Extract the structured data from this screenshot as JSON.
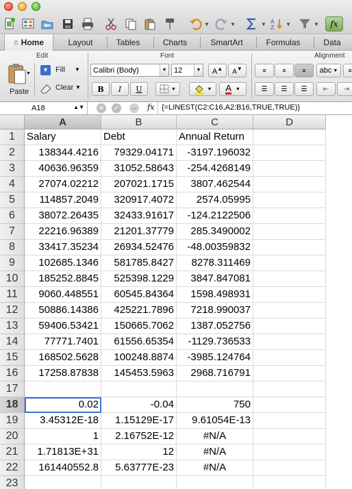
{
  "toolbar": {
    "icons": [
      "new-icon",
      "templates-icon",
      "open-icon",
      "save-icon",
      "print-icon",
      "cut-icon",
      "copy-icon",
      "paste-icon",
      "format-painter-icon",
      "undo-icon",
      "redo-icon",
      "autosum-icon",
      "sort-icon",
      "filter-icon",
      "formula-builder-icon"
    ],
    "fx": "fx"
  },
  "ribbon_tabs": [
    {
      "label": "Home",
      "active": true
    },
    {
      "label": "Layout"
    },
    {
      "label": "Tables"
    },
    {
      "label": "Charts"
    },
    {
      "label": "SmartArt"
    },
    {
      "label": "Formulas"
    },
    {
      "label": "Data"
    }
  ],
  "ribbon": {
    "edit_group": "Edit",
    "font_group": "Font",
    "alignment_group": "Alignment",
    "paste_label": "Paste",
    "fill_label": "Fill",
    "clear_label": "Clear",
    "font_name": "Calibri (Body)",
    "font_size": "12",
    "bold": "B",
    "italic": "I",
    "underline": "U",
    "wrap_label": "abc"
  },
  "formula_bar": {
    "name_box": "A18",
    "fx": "fx",
    "formula": "{=LINEST(C2:C16,A2:B16,TRUE,TRUE)}"
  },
  "columns": [
    "A",
    "B",
    "C",
    "D"
  ],
  "selected_column": "A",
  "selected_row": "18",
  "rows": [
    {
      "num": "1",
      "cells": [
        "Salary",
        "Debt",
        "Annual Return",
        ""
      ]
    },
    {
      "num": "2",
      "cells": [
        "138344.4216",
        "79329.04171",
        "-3197.196032",
        ""
      ]
    },
    {
      "num": "3",
      "cells": [
        "40636.96359",
        "31052.58643",
        "-254.4268149",
        ""
      ]
    },
    {
      "num": "4",
      "cells": [
        "27074.02212",
        "207021.1715",
        "3807.462544",
        ""
      ]
    },
    {
      "num": "5",
      "cells": [
        "114857.2049",
        "320917.4072",
        "2574.05995",
        ""
      ]
    },
    {
      "num": "6",
      "cells": [
        "38072.26435",
        "32433.91617",
        "-124.2122506",
        ""
      ]
    },
    {
      "num": "7",
      "cells": [
        "22216.96389",
        "21201.37779",
        "285.3490002",
        ""
      ]
    },
    {
      "num": "8",
      "cells": [
        "33417.35234",
        "26934.52476",
        "-48.00359832",
        ""
      ]
    },
    {
      "num": "9",
      "cells": [
        "102685.1346",
        "581785.8427",
        "8278.311469",
        ""
      ]
    },
    {
      "num": "10",
      "cells": [
        "185252.8845",
        "525398.1229",
        "3847.847081",
        ""
      ]
    },
    {
      "num": "11",
      "cells": [
        "9060.448551",
        "60545.84364",
        "1598.498931",
        ""
      ]
    },
    {
      "num": "12",
      "cells": [
        "50886.14386",
        "425221.7896",
        "7218.990037",
        ""
      ]
    },
    {
      "num": "13",
      "cells": [
        "59406.53421",
        "150665.7062",
        "1387.052756",
        ""
      ]
    },
    {
      "num": "14",
      "cells": [
        "77771.7401",
        "61556.65354",
        "-1129.736533",
        ""
      ]
    },
    {
      "num": "15",
      "cells": [
        "168502.5628",
        "100248.8874",
        "-3985.124764",
        ""
      ]
    },
    {
      "num": "16",
      "cells": [
        "17258.87838",
        "145453.5963",
        "2968.716791",
        ""
      ]
    },
    {
      "num": "17",
      "cells": [
        "",
        "",
        "",
        ""
      ]
    },
    {
      "num": "18",
      "cells": [
        "0.02",
        "-0.04",
        "750",
        ""
      ]
    },
    {
      "num": "19",
      "cells": [
        "3.45312E-18",
        "1.15129E-17",
        "9.61054E-13",
        ""
      ]
    },
    {
      "num": "20",
      "cells": [
        "1",
        "2.16752E-12",
        "#N/A",
        ""
      ]
    },
    {
      "num": "21",
      "cells": [
        "1.71813E+31",
        "12",
        "#N/A",
        ""
      ]
    },
    {
      "num": "22",
      "cells": [
        "161440552.8",
        "5.63777E-23",
        "#N/A",
        ""
      ]
    },
    {
      "num": "23",
      "cells": [
        "",
        "",
        "",
        ""
      ]
    }
  ]
}
